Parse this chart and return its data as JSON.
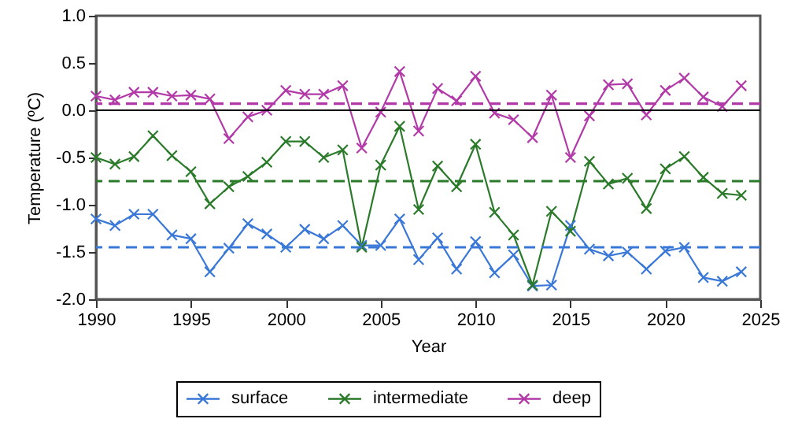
{
  "chart_data": {
    "type": "line",
    "xlabel": "Year",
    "ylabel": "Temperature (ºC)",
    "x": [
      1990,
      1991,
      1992,
      1993,
      1994,
      1995,
      1996,
      1997,
      1998,
      1999,
      2000,
      2001,
      2002,
      2003,
      2004,
      2005,
      2006,
      2007,
      2008,
      2009,
      2010,
      2011,
      2012,
      2013,
      2014,
      2015,
      2016,
      2017,
      2018,
      2019,
      2020,
      2021,
      2022,
      2023,
      2024
    ],
    "series": [
      {
        "name": "surface",
        "color": "#3a78d8",
        "values": [
          -1.15,
          -1.22,
          -1.1,
          -1.1,
          -1.32,
          -1.36,
          -1.71,
          -1.46,
          -1.2,
          -1.31,
          -1.45,
          -1.26,
          -1.36,
          -1.22,
          -1.43,
          -1.43,
          -1.15,
          -1.58,
          -1.35,
          -1.68,
          -1.39,
          -1.72,
          -1.53,
          -1.86,
          -1.85,
          -1.22,
          -1.47,
          -1.54,
          -1.5,
          -1.68,
          -1.49,
          -1.45,
          -1.77,
          -1.81,
          -1.71
        ]
      },
      {
        "name": "intermediate",
        "color": "#2a7a2a",
        "values": [
          -0.5,
          -0.57,
          -0.49,
          -0.27,
          -0.48,
          -0.65,
          -0.99,
          -0.81,
          -0.7,
          -0.55,
          -0.33,
          -0.33,
          -0.5,
          -0.42,
          -1.45,
          -0.58,
          -0.17,
          -1.05,
          -0.59,
          -0.81,
          -0.36,
          -1.08,
          -1.32,
          -1.85,
          -1.07,
          -1.28,
          -0.54,
          -0.78,
          -0.72,
          -1.04,
          -0.62,
          -0.49,
          -0.71,
          -0.88,
          -0.9
        ]
      },
      {
        "name": "deep",
        "color": "#b23aa8",
        "values": [
          0.15,
          0.11,
          0.19,
          0.19,
          0.15,
          0.16,
          0.12,
          -0.3,
          -0.07,
          0.0,
          0.21,
          0.17,
          0.17,
          0.26,
          -0.4,
          -0.02,
          0.41,
          -0.22,
          0.23,
          0.1,
          0.36,
          -0.03,
          -0.1,
          -0.29,
          0.16,
          -0.5,
          -0.06,
          0.27,
          0.28,
          -0.05,
          0.21,
          0.34,
          0.14,
          0.04,
          0.26
        ]
      }
    ],
    "xlim": [
      1990,
      2025
    ],
    "xticks": [
      1990,
      1995,
      2000,
      2005,
      2010,
      2015,
      2020,
      2025
    ],
    "ylim": [
      -2.0,
      1.0
    ],
    "yticks": [
      {
        "value": -2.0,
        "label": "-2.0"
      },
      {
        "value": -1.5,
        "label": "-1.5"
      },
      {
        "value": -1.0,
        "label": "-1.0"
      },
      {
        "value": -0.5,
        "label": "-0.5"
      },
      {
        "value": 0,
        "label": "0.0"
      },
      {
        "value": 0.5,
        "label": "0.5"
      },
      {
        "value": 1.0,
        "label": "1.0"
      }
    ],
    "ref_lines": [
      {
        "axis": "y",
        "value": 0,
        "color": "#000000",
        "line_style": "solid"
      },
      {
        "axis": "y",
        "value": -1.45,
        "color": "#3a78d8",
        "line_style": "dashed"
      },
      {
        "axis": "y",
        "value": -0.75,
        "color": "#2a7a2a",
        "line_style": "dashed"
      },
      {
        "axis": "y",
        "value": 0.07,
        "color": "#b23aa8",
        "line_style": "dashed"
      }
    ],
    "marker": "cross",
    "line_style": "solid",
    "legend": "bottom",
    "grid": false
  }
}
